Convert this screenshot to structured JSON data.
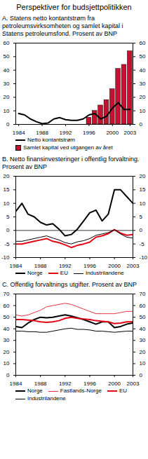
{
  "title": "Perspektiver for budsjettpolitikken",
  "chart_data": [
    {
      "type": "bar",
      "title": "A. Statens netto kontantstrøm fra petroleumsvirksomheten og samlet kapital i Statens petroleumsfond. Prosent av BNP",
      "x": [
        1984,
        1985,
        1986,
        1987,
        1988,
        1989,
        1990,
        1991,
        1992,
        1993,
        1994,
        1995,
        1996,
        1997,
        1998,
        1999,
        2000,
        2001,
        2002,
        2003
      ],
      "xlim": [
        1983.5,
        2003.5
      ],
      "xticks": [
        1984,
        1988,
        1992,
        1996,
        2000,
        2003
      ],
      "ylim": [
        0,
        60
      ],
      "yticks": [
        0,
        10,
        20,
        30,
        40,
        50,
        60
      ],
      "y2lim": [
        0,
        60
      ],
      "y2ticks": [
        0,
        10,
        20,
        30,
        40,
        50,
        60
      ],
      "series": [
        {
          "name": "Netto kontantstrøm",
          "type": "line",
          "line_style": "thick",
          "color": "#000000",
          "values": [
            8,
            7,
            4,
            2,
            0.5,
            1,
            4,
            5,
            3.5,
            3,
            3,
            4,
            7,
            8,
            4,
            6,
            12,
            16,
            11,
            11
          ]
        },
        {
          "name": "Samlet kapital ved utgangen av året",
          "type": "bar",
          "axis": "y2",
          "color": "#c4122f",
          "values": [
            null,
            null,
            null,
            null,
            null,
            null,
            null,
            null,
            null,
            null,
            null,
            null,
            5,
            10,
            14,
            18,
            26,
            41,
            44,
            54
          ]
        }
      ]
    },
    {
      "type": "line",
      "title": "B. Netto finansinvesteringer i offentlig forvaltning. Prosent av BNP",
      "x": [
        1984,
        1985,
        1986,
        1987,
        1988,
        1989,
        1990,
        1991,
        1992,
        1993,
        1994,
        1995,
        1996,
        1997,
        1998,
        1999,
        2000,
        2001,
        2002,
        2003
      ],
      "xlim": [
        1984,
        2003
      ],
      "xticks": [
        1984,
        1988,
        1992,
        1996,
        2000,
        2003
      ],
      "ylim": [
        -10,
        20
      ],
      "yticks": [
        -10,
        -5,
        0,
        5,
        10,
        15,
        20
      ],
      "y2lim": [
        -10,
        20
      ],
      "y2ticks": [
        -10,
        -5,
        0,
        5,
        10,
        15,
        20
      ],
      "series": [
        {
          "name": "Norge",
          "line_style": "thick",
          "color": "#000000",
          "values": [
            7,
            10,
            6,
            5,
            3,
            2,
            2.5,
            0.5,
            -2,
            -1.5,
            0.5,
            3.5,
            6.5,
            7.5,
            3.5,
            6,
            15,
            15,
            12.5,
            10
          ]
        },
        {
          "name": "EU",
          "line_style": "thick",
          "color": "#e30613",
          "values": [
            -5,
            -5,
            -4.5,
            -4,
            -3.5,
            -3,
            -4,
            -4.5,
            -5.3,
            -6.3,
            -5.5,
            -5,
            -4.3,
            -2.5,
            -2,
            -1.2,
            0.3,
            -1,
            -1.8,
            -1.5
          ]
        },
        {
          "name": "Industrilandene",
          "line_style": "thin",
          "color": "#000000",
          "values": [
            -4,
            -4,
            -3.5,
            -3,
            -2.5,
            -2,
            -2.8,
            -3.5,
            -4.5,
            -5,
            -4.2,
            -3.8,
            -3,
            -1.8,
            -1.3,
            -0.8,
            0.2,
            -1.3,
            -2.5,
            -2.8
          ]
        }
      ]
    },
    {
      "type": "line",
      "title": "C. Offentlig forvaltnings utgifter. Prosent av BNP",
      "x": [
        1984,
        1985,
        1986,
        1987,
        1988,
        1989,
        1990,
        1991,
        1992,
        1993,
        1994,
        1995,
        1996,
        1997,
        1998,
        1999,
        2000,
        2001,
        2002,
        2003
      ],
      "xlim": [
        1984,
        2003
      ],
      "xticks": [
        1984,
        1988,
        1992,
        1996,
        2000,
        2003
      ],
      "ylim": [
        0,
        70
      ],
      "yticks": [
        0,
        10,
        20,
        30,
        40,
        50,
        60,
        70
      ],
      "y2lim": [
        0,
        70
      ],
      "y2ticks": [
        0,
        10,
        20,
        30,
        40,
        50,
        60,
        70
      ],
      "series": [
        {
          "name": "Norge",
          "line_style": "thick",
          "color": "#000000",
          "values": [
            42,
            41,
            45,
            48,
            50,
            49.5,
            50,
            51,
            52,
            51,
            49.5,
            48,
            46,
            44,
            46,
            46,
            41,
            42,
            44,
            45
          ]
        },
        {
          "name": "Fastlands-Norge",
          "line_style": "thin",
          "color": "#e8343f",
          "values": [
            52,
            51,
            52,
            54,
            56,
            59,
            60,
            61,
            62,
            61,
            59,
            57,
            55,
            53,
            53,
            53,
            53,
            54,
            55,
            55
          ]
        },
        {
          "name": "EU",
          "line_style": "thick",
          "color": "#e30613",
          "values": [
            48,
            48,
            47.5,
            47,
            46,
            45.5,
            46,
            47,
            49,
            50,
            49,
            48.5,
            48,
            47,
            46.5,
            46,
            44.5,
            45,
            46,
            46
          ]
        },
        {
          "name": "Industrilandene",
          "line_style": "thin",
          "color": "#000000",
          "values": [
            38,
            38,
            37.5,
            37.5,
            37,
            37,
            38,
            39,
            40,
            40.5,
            39.5,
            39.5,
            39,
            38,
            38,
            37.5,
            37,
            37.5,
            38,
            38
          ]
        }
      ]
    }
  ]
}
